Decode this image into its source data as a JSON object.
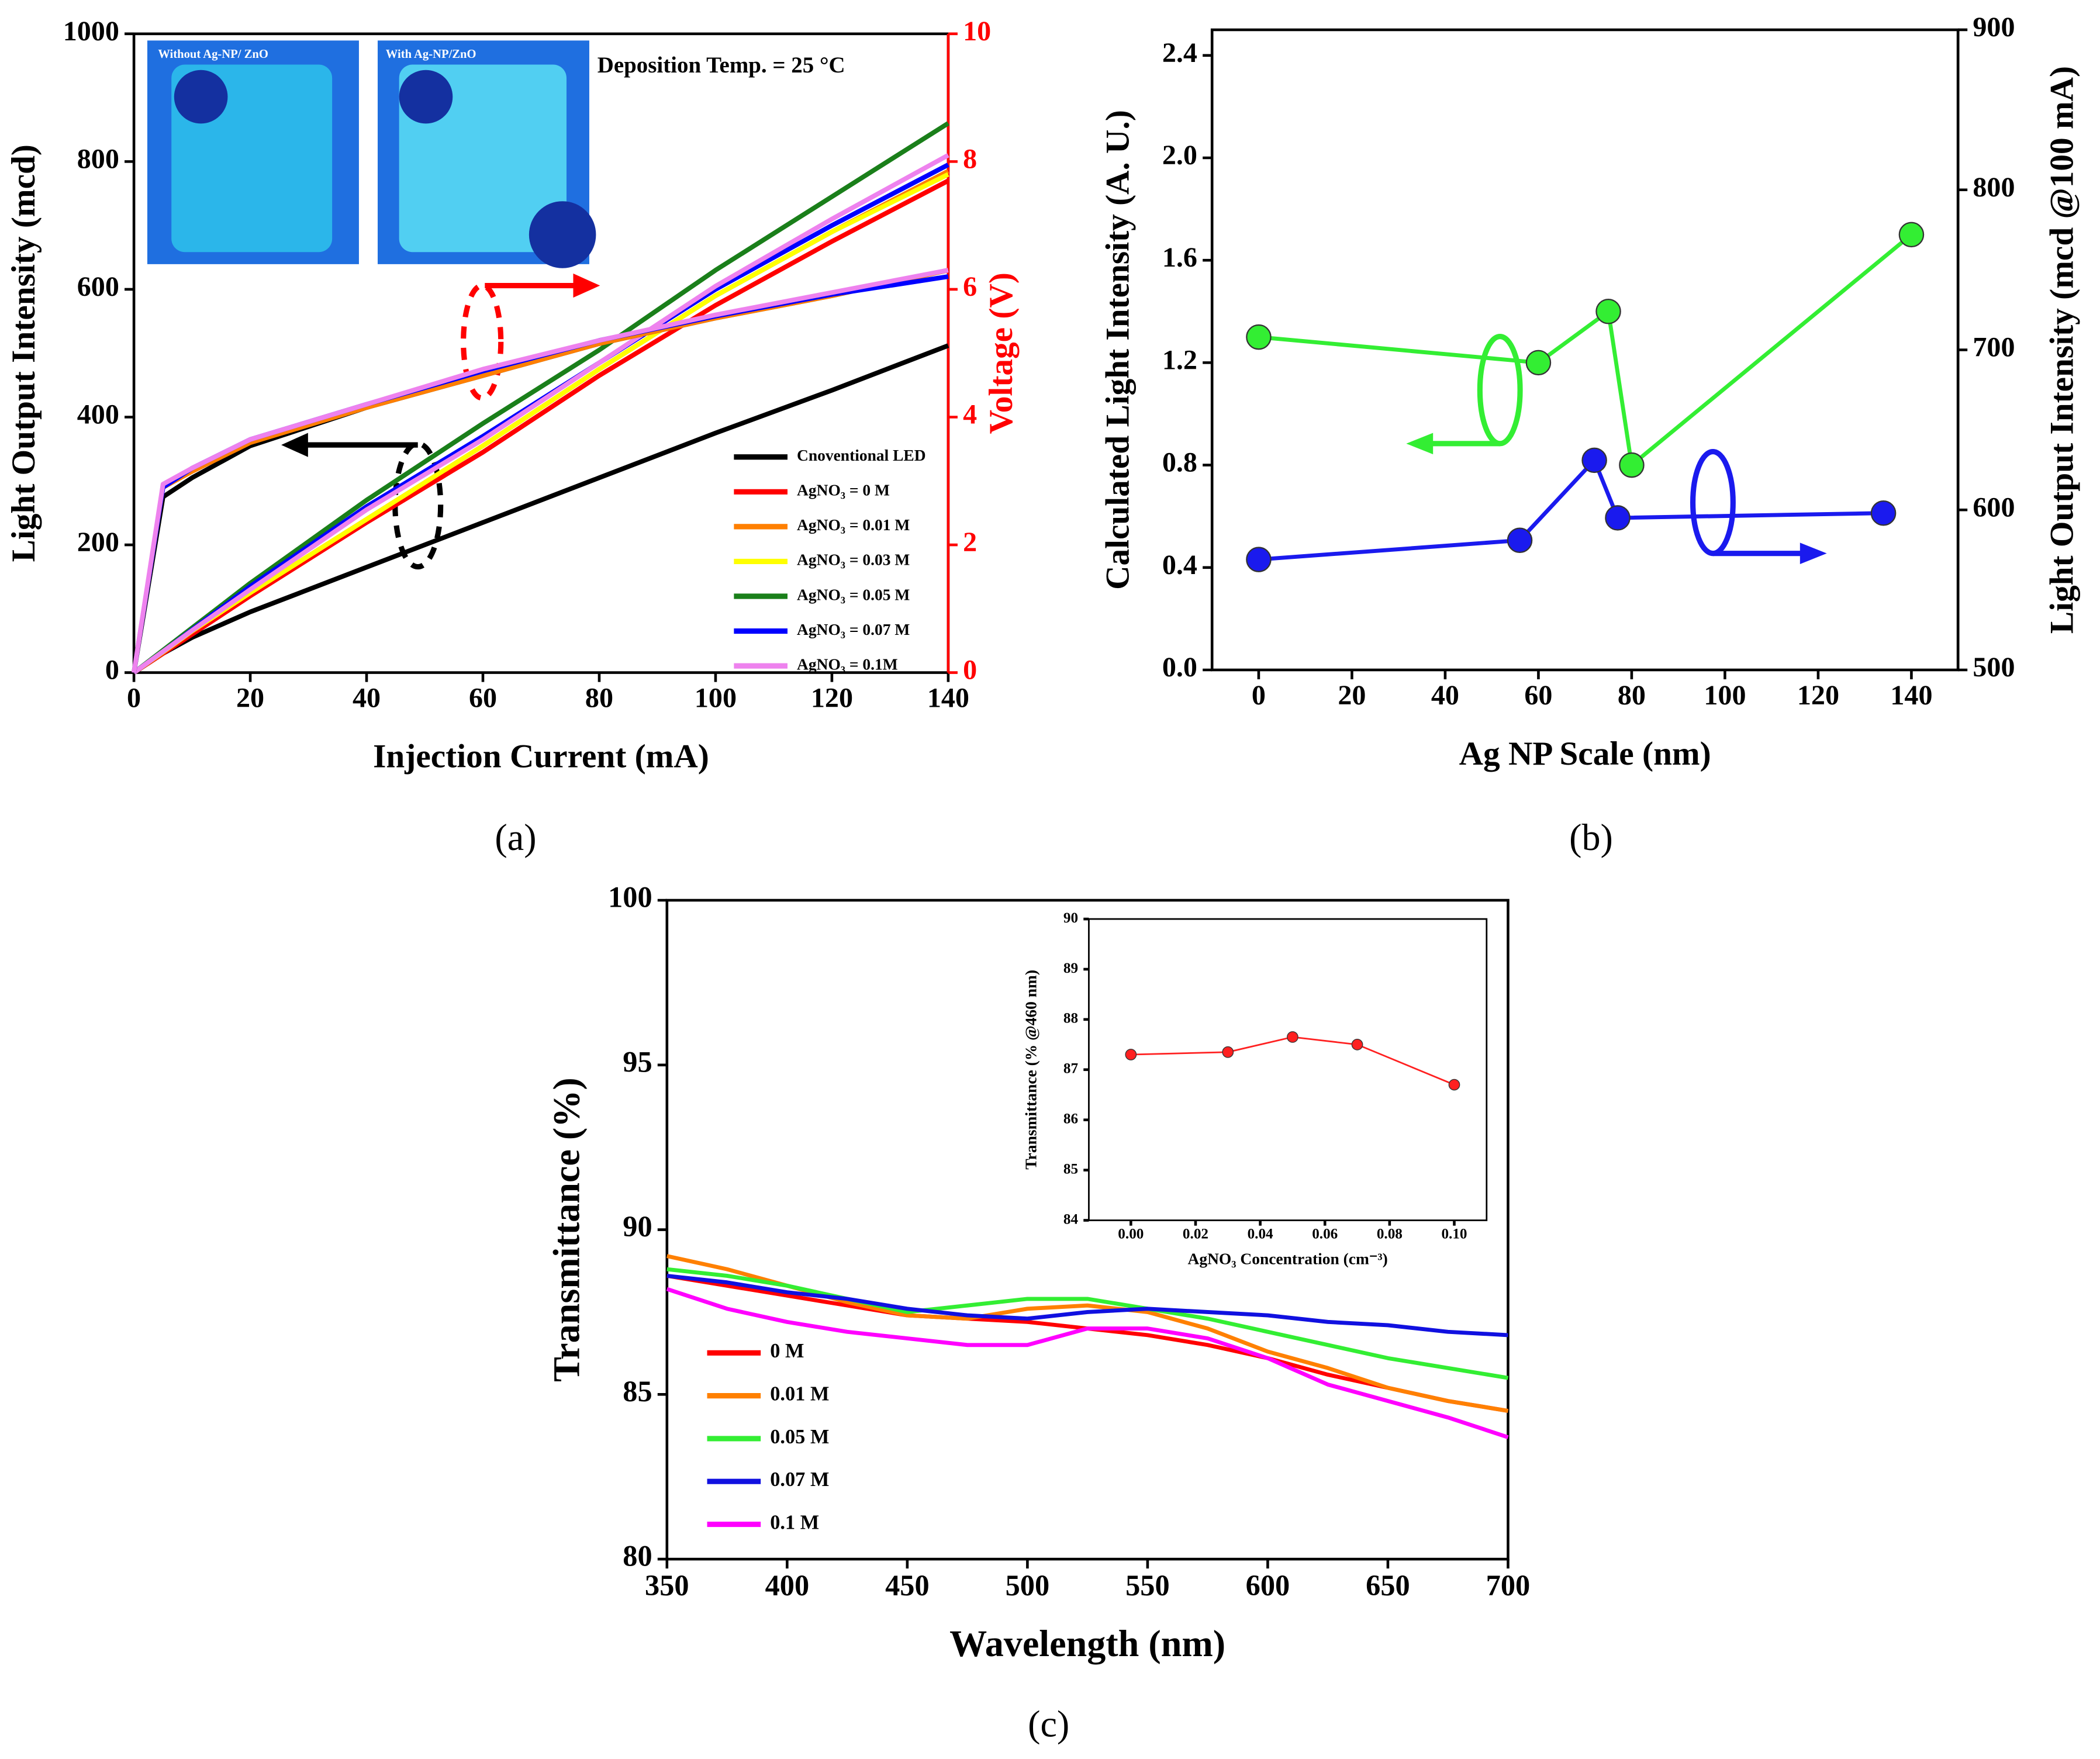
{
  "chart_data": [
    {
      "type": "line",
      "panel": "(a)",
      "xlabel": "Injection Current (mA)",
      "ylabel": "Light Output Intensity (mcd)",
      "y2label": "Voltage (V)",
      "y2_color": "#ff0000",
      "annotations": [
        "Deposition Temp. = 25 °C",
        "Without Ag-NP/ ZnO",
        "With Ag-NP/ZnO"
      ],
      "x": [
        0,
        5,
        10,
        20,
        40,
        60,
        80,
        100,
        120,
        140
      ],
      "xlim": [
        0,
        140
      ],
      "xticks": [
        0,
        20,
        40,
        60,
        80,
        100,
        120,
        140
      ],
      "ylim": [
        0,
        1000
      ],
      "yticks": [
        0,
        200,
        400,
        600,
        800,
        1000
      ],
      "y2lim": [
        0,
        10
      ],
      "y2ticks": [
        0,
        2,
        4,
        6,
        8,
        10
      ],
      "legend": "lower right",
      "series": [
        {
          "name": "Cnoventional LED",
          "color": "#000000",
          "values": [
            0,
            30,
            55,
            95,
            165,
            235,
            305,
            375,
            442,
            512
          ]
        },
        {
          "name": "AgNO₃ = 0 M",
          "color": "#ff0000",
          "values": [
            0,
            30,
            60,
            120,
            235,
            345,
            465,
            575,
            675,
            770
          ]
        },
        {
          "name": "AgNO₃ = 0.01 M",
          "color": "#ff7f00",
          "values": [
            0,
            32,
            65,
            125,
            240,
            355,
            475,
            590,
            690,
            785
          ]
        },
        {
          "name": "AgNO₃ = 0.03 M",
          "color": "#ffff00",
          "values": [
            0,
            32,
            65,
            125,
            240,
            355,
            475,
            590,
            690,
            780
          ]
        },
        {
          "name": "AgNO₃ = 0.05 M",
          "color": "#1a7f1a",
          "values": [
            0,
            35,
            70,
            140,
            270,
            390,
            505,
            630,
            745,
            860
          ]
        },
        {
          "name": "AgNO₃ = 0.07 M",
          "color": "#0000ff",
          "values": [
            0,
            33,
            67,
            135,
            260,
            370,
            485,
            600,
            700,
            795
          ]
        },
        {
          "name": "AgNO₃ = 0.1M",
          "color": "#ee82ee",
          "values": [
            0,
            33,
            66,
            130,
            255,
            365,
            485,
            605,
            710,
            810
          ]
        },
        {
          "color": "#000000",
          "axis": "y2",
          "values": [
            0,
            2.75,
            3.05,
            3.55,
            4.15,
            4.65,
            5.15,
            5.55,
            5.9,
            6.3
          ]
        },
        {
          "color": "#ff7f00",
          "axis": "y2",
          "values": [
            0,
            2.9,
            3.15,
            3.6,
            4.15,
            4.65,
            5.15,
            5.55,
            5.9,
            6.3
          ]
        },
        {
          "color": "#0000ff",
          "axis": "y2",
          "values": [
            0,
            2.9,
            3.2,
            3.65,
            4.2,
            4.72,
            5.2,
            5.58,
            5.92,
            6.2
          ]
        },
        {
          "color": "#ee82ee",
          "axis": "y2",
          "values": [
            0,
            2.95,
            3.2,
            3.65,
            4.2,
            4.75,
            5.2,
            5.6,
            5.95,
            6.3
          ]
        }
      ]
    },
    {
      "type": "scatter",
      "panel": "(b)",
      "xlabel": "Ag NP Scale (nm)",
      "ylabel": "Calculated Light Intensity (A. U.)",
      "y2label": "Light Output Intensity (mcd @100 mA)",
      "xlim": [
        -10,
        150
      ],
      "xticks": [
        0,
        20,
        40,
        60,
        80,
        100,
        120,
        140
      ],
      "ylim": [
        0,
        2.5
      ],
      "yticks": [
        {
          "value": 0,
          "label": "0.0"
        },
        0.4,
        0.8,
        1.2,
        1.6,
        {
          "value": 2,
          "label": "2.0"
        },
        2.4
      ],
      "y2lim": [
        500,
        900
      ],
      "y2ticks": [
        500,
        600,
        700,
        800,
        900
      ],
      "series": [
        {
          "color": "#33ee33",
          "x": [
            0,
            60,
            75,
            80,
            140
          ],
          "values": [
            1.3,
            1.2,
            1.4,
            0.8,
            1.7
          ]
        },
        {
          "color": "#1a1aee",
          "axis": "y2",
          "x": [
            0,
            56,
            72,
            77,
            134
          ],
          "values": [
            569,
            581,
            631,
            595,
            598
          ]
        }
      ]
    },
    {
      "type": "line",
      "panel": "(c)",
      "xlabel": "Wavelength (nm)",
      "ylabel": "Transmittance (%)",
      "x": [
        350,
        375,
        400,
        425,
        450,
        475,
        500,
        525,
        550,
        575,
        600,
        625,
        650,
        675,
        700
      ],
      "xlim": [
        350,
        700
      ],
      "xticks": [
        350,
        400,
        450,
        500,
        550,
        600,
        650,
        700
      ],
      "ylim": [
        80,
        100
      ],
      "yticks": [
        80,
        85,
        90,
        95,
        100
      ],
      "legend": "lower left",
      "series": [
        {
          "name": "0 M",
          "color": "#ff0000",
          "values": [
            88.6,
            88.3,
            88.0,
            87.7,
            87.4,
            87.3,
            87.2,
            87.0,
            86.8,
            86.5,
            86.1,
            85.6,
            85.2,
            84.8,
            84.5
          ]
        },
        {
          "name": "0.01 M",
          "color": "#ff8000",
          "values": [
            89.2,
            88.8,
            88.3,
            87.8,
            87.4,
            87.3,
            87.6,
            87.7,
            87.5,
            87.0,
            86.3,
            85.8,
            85.2,
            84.8,
            84.5
          ]
        },
        {
          "name": "0.05 M",
          "color": "#33ee33",
          "values": [
            88.8,
            88.6,
            88.3,
            87.9,
            87.5,
            87.7,
            87.9,
            87.9,
            87.6,
            87.3,
            86.9,
            86.5,
            86.1,
            85.8,
            85.5
          ]
        },
        {
          "name": "0.07 M",
          "color": "#1010e0",
          "values": [
            88.6,
            88.4,
            88.1,
            87.9,
            87.6,
            87.4,
            87.3,
            87.5,
            87.6,
            87.5,
            87.4,
            87.2,
            87.1,
            86.9,
            86.8
          ]
        },
        {
          "name": "0.1 M",
          "color": "#ff00ff",
          "values": [
            88.2,
            87.6,
            87.2,
            86.9,
            86.7,
            86.5,
            86.5,
            87.0,
            87.0,
            86.7,
            86.1,
            85.3,
            84.8,
            84.3,
            83.7
          ]
        }
      ]
    },
    {
      "type": "scatter",
      "xlabel": "AgNO₃ Concentration (cm⁻³)",
      "ylabel": "Transmittance (% @460 nm)",
      "x": [
        0,
        0.03,
        0.05,
        0.07,
        0.1
      ],
      "xlim": [
        -0.013,
        0.11
      ],
      "xticks": [
        {
          "value": 0,
          "label": "0.00"
        },
        0.02,
        0.04,
        0.06,
        0.08,
        {
          "value": 0.1,
          "label": "0.10"
        }
      ],
      "ylim": [
        84,
        90
      ],
      "yticks": [
        84,
        85,
        86,
        87,
        88,
        89,
        90
      ],
      "series": [
        {
          "color": "#ff2020",
          "values": [
            87.3,
            87.35,
            87.65,
            87.5,
            86.7
          ]
        }
      ]
    }
  ]
}
